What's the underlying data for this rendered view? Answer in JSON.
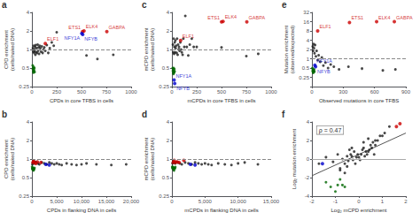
{
  "chart_data": [
    {
      "type": "scatter",
      "title": "a",
      "xlabel": "CPDs in core TFBS in cells",
      "ylabel": "CPD enrichment\n(cells/naked DNA)",
      "log": "y",
      "grid": false,
      "xlim": [
        0,
        1000
      ],
      "ylim": [
        0.25,
        4
      ],
      "xticks": [
        0,
        250,
        500,
        750,
        1000
      ],
      "yticks": [
        0.25,
        0.5,
        1,
        2,
        4
      ],
      "series": [
        {
          "color": "#1a1a1a",
          "x": [
            10,
            15,
            18,
            22,
            25,
            28,
            32,
            35,
            38,
            42,
            48,
            52,
            58,
            62,
            68,
            72,
            78,
            85,
            92,
            100,
            108,
            115,
            125,
            135,
            150,
            165,
            180,
            200,
            220,
            250,
            550,
            660,
            820
          ],
          "values": [
            1.05,
            0.92,
            1.15,
            0.88,
            1.0,
            0.95,
            1.1,
            0.82,
            1.18,
            0.9,
            1.05,
            0.88,
            1.2,
            0.95,
            1.08,
            0.85,
            1.15,
            1.05,
            0.92,
            1.12,
            0.88,
            1.0,
            1.08,
            0.95,
            1.18,
            0.88,
            1.05,
            1.3,
            1.15,
            1.9,
            0.8,
            0.7,
            0.82
          ]
        },
        {
          "color": "#006600",
          "x": [
            8,
            10,
            12,
            14,
            16,
            18,
            20,
            22,
            25,
            28
          ],
          "values": [
            0.55,
            0.48,
            0.5,
            0.44,
            0.42,
            0.52,
            0.47,
            0.45,
            0.5,
            0.43
          ]
        },
        {
          "color": "#cc0000",
          "x": [
            135,
            510,
            525,
            755
          ],
          "values": [
            1.25,
            1.95,
            2.0,
            1.95
          ]
        },
        {
          "color": "#0000cc",
          "x": [
            502,
            512
          ],
          "values": [
            1.82,
            1.75
          ]
        }
      ],
      "reference_lines": [
        {
          "y": 1.0,
          "color": "#888888",
          "line_style": "dashed"
        }
      ],
      "annotations": [
        {
          "text": "ELF1",
          "x": 135,
          "y": 1.25,
          "color": "#cc0000"
        },
        {
          "text": "ETS1",
          "x": 510,
          "y": 1.95,
          "color": "#cc0000"
        },
        {
          "text": "ELK4",
          "x": 525,
          "y": 2.0,
          "color": "#cc0000"
        },
        {
          "text": "GABPA",
          "x": 755,
          "y": 1.95,
          "color": "#cc0000"
        },
        {
          "text": "NFY1A",
          "x": 502,
          "y": 1.82,
          "color": "#0000cc"
        },
        {
          "text": "NFYB",
          "x": 512,
          "y": 1.75,
          "color": "#0000cc"
        }
      ]
    },
    {
      "type": "scatter",
      "title": "b",
      "xlabel": "CPDs in flanking DNA in cells",
      "ylabel": "CPD enrichment\n(cells/naked DNA)",
      "log": "y",
      "grid": false,
      "xlim": [
        0,
        20000
      ],
      "ylim": [
        0.25,
        4
      ],
      "xticks": [
        0,
        {
          "value": 5000,
          "label": "5,000"
        },
        {
          "value": 10000,
          "label": "10,000"
        },
        {
          "value": 15000,
          "label": "15,000"
        },
        {
          "value": 20000,
          "label": "20,000"
        }
      ],
      "yticks": [
        0.25,
        0.5,
        1,
        2,
        4
      ],
      "series": [
        {
          "color": "#1a1a1a",
          "x": [
            100,
            200,
            350,
            500,
            700,
            900,
            1200,
            1500,
            2000,
            2500,
            3000,
            3500,
            4000,
            4500,
            5000,
            5500,
            6000,
            7000,
            8000,
            9000,
            10000,
            11000,
            13000,
            16000,
            19000
          ],
          "values": [
            0.82,
            0.88,
            0.92,
            0.85,
            0.9,
            0.88,
            0.85,
            0.82,
            0.88,
            0.85,
            0.82,
            0.88,
            0.85,
            0.82,
            0.85,
            0.82,
            0.8,
            0.85,
            0.82,
            0.8,
            0.82,
            0.85,
            0.82,
            0.8,
            0.82
          ]
        },
        {
          "color": "#006600",
          "x": [
            50,
            80,
            120,
            160,
            200,
            250,
            320,
            380,
            450,
            520
          ],
          "values": [
            0.75,
            0.7,
            0.68,
            0.72,
            0.7,
            0.68,
            0.65,
            0.7,
            0.68,
            0.72
          ]
        },
        {
          "color": "#cc0000",
          "x": [
            200,
            350,
            550,
            800,
            1100,
            1800
          ],
          "values": [
            0.88,
            0.92,
            0.88,
            0.85,
            0.9,
            0.88
          ]
        },
        {
          "color": "#0000cc",
          "x": [
            2800,
            3500
          ],
          "values": [
            0.82,
            0.8
          ]
        }
      ],
      "reference_lines": [
        {
          "y": 1.0,
          "color": "#888888",
          "line_style": "dashed"
        }
      ]
    },
    {
      "type": "scatter",
      "title": "c",
      "xlabel": "mCPDs in core TFBS in cells",
      "ylabel": "mCPD enrichment\n(cells/naked DNA)",
      "log": "y",
      "grid": false,
      "xlim": [
        0,
        1000
      ],
      "ylim": [
        0.25,
        4
      ],
      "xticks": [
        0,
        250,
        500,
        750,
        1000
      ],
      "yticks": [
        0.25,
        0.5,
        1,
        2,
        4
      ],
      "series": [
        {
          "color": "#1a1a1a",
          "x": [
            10,
            15,
            18,
            22,
            25,
            28,
            32,
            35,
            38,
            42,
            48,
            52,
            58,
            62,
            68,
            72,
            78,
            85,
            92,
            100,
            108,
            115,
            125,
            135,
            150,
            165,
            180,
            200,
            220,
            250,
            500,
            750,
            870
          ],
          "values": [
            1.2,
            0.9,
            1.5,
            0.85,
            1.1,
            1.3,
            0.9,
            1.4,
            1.05,
            1.15,
            0.88,
            1.5,
            0.82,
            1.2,
            1.0,
            1.1,
            0.95,
            1.3,
            1.0,
            0.9,
            0.82,
            1.5,
            1.1,
            3.5,
            1.1,
            0.8,
            1.2,
            1.5,
            1.1,
            1.1,
            1.08,
            0.78,
            0.85
          ]
        },
        {
          "color": "#006600",
          "x": [
            8,
            10,
            12,
            14,
            16,
            18,
            20,
            22,
            25,
            28
          ],
          "values": [
            0.5,
            0.45,
            0.48,
            0.42,
            0.4,
            0.5,
            0.45,
            0.42,
            0.48,
            0.44
          ]
        },
        {
          "color": "#cc0000",
          "x": [
            88,
            500,
            515,
            755
          ],
          "values": [
            1.4,
            2.8,
            2.85,
            2.8
          ]
        },
        {
          "color": "#0000cc",
          "x": [
            22,
            28
          ],
          "values": [
            0.32,
            0.28
          ]
        }
      ],
      "reference_lines": [
        {
          "y": 1.0,
          "color": "#888888",
          "line_style": "dashed"
        }
      ],
      "annotations": [
        {
          "text": "ELF1",
          "x": 88,
          "y": 1.4,
          "color": "#cc0000"
        },
        {
          "text": "ETS1",
          "x": 500,
          "y": 2.8,
          "color": "#cc0000"
        },
        {
          "text": "ELK4",
          "x": 515,
          "y": 2.85,
          "color": "#cc0000"
        },
        {
          "text": "GABPA",
          "x": 755,
          "y": 2.8,
          "color": "#cc0000"
        },
        {
          "text": "NFY1A",
          "x": 22,
          "y": 0.32,
          "color": "#0000cc"
        },
        {
          "text": "NFYB",
          "x": 28,
          "y": 0.28,
          "color": "#0000cc"
        }
      ]
    },
    {
      "type": "scatter",
      "title": "d",
      "xlabel": "mCPDs in flanking DNA in cells",
      "ylabel": "mCPD enrichment\n(cells/naked DNA)",
      "log": "y",
      "grid": false,
      "xlim": [
        0,
        15000
      ],
      "ylim": [
        0.25,
        4
      ],
      "xticks": [
        0,
        {
          "value": 5000,
          "label": "5,000"
        },
        {
          "value": 10000,
          "label": "10,000"
        },
        {
          "value": 15000,
          "label": "15,000"
        }
      ],
      "yticks": [
        0.25,
        0.5,
        1,
        2,
        4
      ],
      "series": [
        {
          "color": "#1a1a1a",
          "x": [
            100,
            200,
            350,
            500,
            700,
            900,
            1200,
            1500,
            2000,
            2500,
            3000,
            3500,
            4000,
            4500,
            5000,
            5500,
            6000,
            7000,
            8000,
            9000,
            10000,
            11000,
            13000
          ],
          "values": [
            0.85,
            0.92,
            0.88,
            0.85,
            0.9,
            0.88,
            0.85,
            0.82,
            0.88,
            0.85,
            0.82,
            0.88,
            0.85,
            0.82,
            0.85,
            0.82,
            0.8,
            0.85,
            0.82,
            0.8,
            0.85,
            0.88,
            0.82
          ]
        },
        {
          "color": "#006600",
          "x": [
            50,
            80,
            120,
            160,
            200,
            250,
            320,
            380,
            450,
            520
          ],
          "values": [
            0.75,
            0.72,
            0.7,
            0.74,
            0.72,
            0.68,
            0.65,
            0.72,
            0.7,
            0.74
          ]
        },
        {
          "color": "#cc0000",
          "x": [
            200,
            350,
            550,
            800,
            1100,
            1800
          ],
          "values": [
            0.88,
            0.95,
            0.88,
            0.9,
            0.88,
            0.95
          ]
        },
        {
          "color": "#0000cc",
          "x": [
            2800,
            3500
          ],
          "values": [
            0.82,
            0.8
          ]
        }
      ],
      "reference_lines": [
        {
          "y": 1.0,
          "color": "#888888",
          "line_style": "dashed"
        }
      ]
    },
    {
      "type": "scatter",
      "title": "e",
      "xlabel": "Observed mutations in core TFBS",
      "ylabel": "Mutation enrichment\n(observed/expected)",
      "log": "y",
      "grid": false,
      "xlim": [
        0,
        900
      ],
      "ylim": [
        0.125,
        32
      ],
      "xticks": [
        0,
        300,
        600,
        900
      ],
      "yticks": [
        0.25,
        0.5,
        1,
        2,
        4,
        8,
        16,
        32
      ],
      "series": [
        {
          "color": "#1a1a1a",
          "x": [
            8,
            12,
            16,
            20,
            25,
            30,
            38,
            45,
            55,
            65,
            80,
            95,
            110,
            130,
            155,
            180,
            210,
            260,
            350,
            480,
            680,
            800
          ],
          "values": [
            2.5,
            1.8,
            3.0,
            2.2,
            1.5,
            2.8,
            1.2,
            1.8,
            0.9,
            1.3,
            0.8,
            1.1,
            0.6,
            0.75,
            0.5,
            0.65,
            0.55,
            0.45,
            0.55,
            0.48,
            0.42,
            0.45
          ]
        },
        {
          "color": "#006600",
          "x": [
            5,
            7,
            9,
            11,
            13,
            15,
            18,
            21,
            24
          ],
          "values": [
            0.5,
            0.4,
            0.45,
            0.38,
            0.35,
            0.42,
            0.4,
            0.45,
            0.38
          ]
        },
        {
          "color": "#cc0000",
          "x": [
            55,
            360,
            620,
            790
          ],
          "values": [
            8.0,
            15.0,
            16.0,
            16.0
          ]
        },
        {
          "color": "#0000cc",
          "x": [
            28,
            35
          ],
          "values": [
            0.62,
            0.55
          ]
        }
      ],
      "reference_lines": [
        {
          "y": 1.0,
          "color": "#888888",
          "line_style": "dashed"
        }
      ],
      "annotations": [
        {
          "text": "ELF1",
          "x": 55,
          "y": 8.0,
          "color": "#cc0000"
        },
        {
          "text": "ETS1",
          "x": 360,
          "y": 15.0,
          "color": "#cc0000"
        },
        {
          "text": "ELK4",
          "x": 620,
          "y": 16.0,
          "color": "#cc0000"
        },
        {
          "text": "GABPA",
          "x": 790,
          "y": 16.0,
          "color": "#cc0000"
        },
        {
          "text": "NFY1A",
          "x": 28,
          "y": 0.62,
          "color": "#0000cc"
        },
        {
          "text": "NFYB",
          "x": 35,
          "y": 0.55,
          "color": "#0000cc"
        }
      ]
    },
    {
      "type": "scatter",
      "title": "f",
      "xlabel": "Log₂ mCPD enrichment",
      "ylabel": "Log₂ mutation enrichment",
      "grid": false,
      "xlim": [
        -2,
        2
      ],
      "ylim": [
        -4,
        4
      ],
      "xticks": [
        -2,
        -1,
        0,
        1,
        2
      ],
      "yticks": [
        -4,
        -2,
        0,
        2,
        4
      ],
      "series": [
        {
          "color": "#1a1a1a",
          "x": [
            -1.7,
            -1.4,
            -1.1,
            -0.9,
            -0.8,
            -0.7,
            -0.6,
            -0.5,
            -0.45,
            -0.4,
            -0.35,
            -0.3,
            -0.25,
            -0.2,
            -0.15,
            -0.1,
            -0.05,
            0.0,
            0.05,
            0.1,
            0.15,
            0.2,
            0.25,
            0.3,
            0.35,
            0.4,
            0.45,
            0.5,
            0.55,
            0.6,
            0.65,
            0.7,
            0.8,
            0.9,
            1.0,
            1.1,
            1.3,
            -0.6,
            -0.5,
            -0.8,
            -0.3,
            0.2,
            0.4,
            0.7
          ],
          "values": [
            -0.5,
            0.2,
            -0.3,
            0.5,
            -1.0,
            0.0,
            -0.5,
            0.3,
            -0.2,
            1.0,
            0.5,
            0.3,
            -0.1,
            0.8,
            -0.5,
            0.2,
            0.5,
            0.2,
            -0.1,
            0.5,
            1.0,
            1.2,
            0.3,
            0.8,
            0.5,
            0.8,
            1.0,
            1.5,
            1.2,
            1.8,
            0.5,
            2.0,
            2.0,
            2.5,
            2.5,
            2.8,
            3.5,
            -1.5,
            -0.8,
            -1.2,
            1.2,
            1.8,
            2.2,
            1.5
          ]
        },
        {
          "color": "#006600",
          "x": [
            -1.4,
            -1.2,
            -1.0,
            -0.9,
            -0.8,
            -0.7,
            -0.6
          ],
          "values": [
            -2.5,
            -3.0,
            -3.5,
            -2.8,
            -2.2,
            -2.8,
            -3.0
          ]
        },
        {
          "color": "#cc0000",
          "x": [
            1.6,
            1.75
          ],
          "values": [
            3.5,
            3.8
          ]
        },
        {
          "color": "#0000cc",
          "x": [
            -1.55
          ],
          "values": [
            -0.5
          ]
        },
        {
          "type": "line",
          "color": "#555555",
          "x": [
            -2.0,
            2.0
          ],
          "values": [
            -1.8,
            2.8
          ]
        }
      ],
      "reference_lines": [
        {
          "y": 0,
          "color": "#aaaaaa",
          "line_style": "solid"
        }
      ],
      "annotations": [
        {
          "text": "ρ = 0.47"
        }
      ]
    }
  ]
}
